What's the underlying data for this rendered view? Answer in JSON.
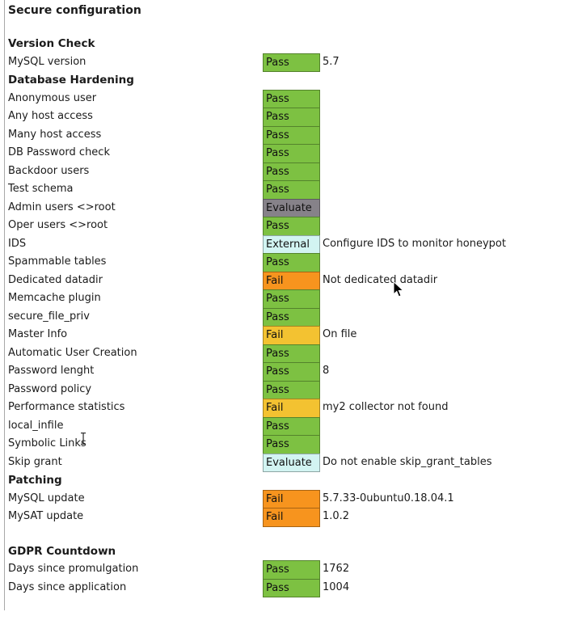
{
  "title": "Secure configuration",
  "colors": {
    "pass": "#7dc142",
    "fail-orange": "#f7941e",
    "fail-yellow": "#f3c231",
    "evaluate-gray": "#868289",
    "evaluate-cyan": "#d2f4f2",
    "external": "#d2f4f2"
  },
  "icons": {
    "mouse_cursor": "arrow-pointer",
    "text_cursor": "i-beam"
  },
  "sections": [
    {
      "heading": "Version Check",
      "gap_before": false,
      "rows": [
        {
          "label": "MySQL version",
          "status": "Pass",
          "variant": "pass",
          "detail": "5.7"
        }
      ]
    },
    {
      "heading": "Database Hardening",
      "gap_before": false,
      "rows": [
        {
          "label": "Anonymous user",
          "status": "Pass",
          "variant": "pass",
          "detail": ""
        },
        {
          "label": "Any host access",
          "status": "Pass",
          "variant": "pass",
          "detail": ""
        },
        {
          "label": "Many host access",
          "status": "Pass",
          "variant": "pass",
          "detail": ""
        },
        {
          "label": "DB Password check",
          "status": "Pass",
          "variant": "pass",
          "detail": ""
        },
        {
          "label": "Backdoor users",
          "status": "Pass",
          "variant": "pass",
          "detail": ""
        },
        {
          "label": "Test schema",
          "status": "Pass",
          "variant": "pass",
          "detail": ""
        },
        {
          "label": "Admin users <>root",
          "status": "Evaluate",
          "variant": "evaluate-gray",
          "detail": ""
        },
        {
          "label": "Oper users <>root",
          "status": "Pass",
          "variant": "pass",
          "detail": ""
        },
        {
          "label": "IDS",
          "status": "External",
          "variant": "external",
          "detail": "Configure IDS to monitor honeypot"
        },
        {
          "label": "Spammable tables",
          "status": "Pass",
          "variant": "pass",
          "detail": ""
        },
        {
          "label": "Dedicated datadir",
          "status": "Fail",
          "variant": "fail-orange",
          "detail": "Not dedicated datadir"
        },
        {
          "label": "Memcache plugin",
          "status": "Pass",
          "variant": "pass",
          "detail": ""
        },
        {
          "label": "secure_file_priv",
          "status": "Pass",
          "variant": "pass",
          "detail": ""
        },
        {
          "label": "Master Info",
          "status": "Fail",
          "variant": "fail-yellow",
          "detail": "On file"
        },
        {
          "label": "Automatic User Creation",
          "status": "Pass",
          "variant": "pass",
          "detail": ""
        },
        {
          "label": "Password lenght",
          "status": "Pass",
          "variant": "pass",
          "detail": "8"
        },
        {
          "label": "Password policy",
          "status": "Pass",
          "variant": "pass",
          "detail": ""
        },
        {
          "label": "Performance statistics",
          "status": "Fail",
          "variant": "fail-yellow",
          "detail": "my2 collector not found"
        },
        {
          "label": "local_infile",
          "status": "Pass",
          "variant": "pass",
          "detail": ""
        },
        {
          "label": "Symbolic Links",
          "status": "Pass",
          "variant": "pass",
          "detail": ""
        },
        {
          "label": "Skip grant",
          "status": "Evaluate",
          "variant": "evaluate-cyan",
          "detail": "Do not enable skip_grant_tables"
        }
      ]
    },
    {
      "heading": "Patching",
      "gap_before": false,
      "rows": [
        {
          "label": "MySQL update",
          "status": "Fail",
          "variant": "fail-orange",
          "detail": "5.7.33-0ubuntu0.18.04.1"
        },
        {
          "label": "MySAT update",
          "status": "Fail",
          "variant": "fail-orange",
          "detail": "1.0.2"
        }
      ]
    },
    {
      "heading": "GDPR Countdown",
      "gap_before": true,
      "rows": [
        {
          "label": "Days since promulgation",
          "status": "Pass",
          "variant": "pass",
          "detail": "1762"
        },
        {
          "label": "Days since application",
          "status": "Pass",
          "variant": "pass",
          "detail": "1004"
        }
      ]
    }
  ]
}
